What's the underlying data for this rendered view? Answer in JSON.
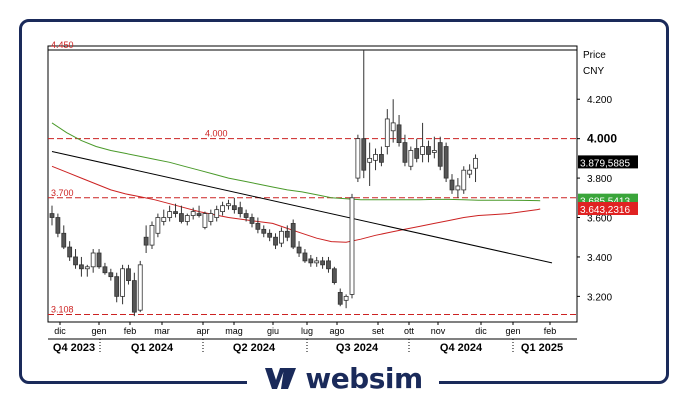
{
  "brand": {
    "name": "websim",
    "color": "#1a2a5a",
    "logo_icon": "websim-w-logo-icon"
  },
  "chart_data": {
    "type": "candlestick",
    "price_label": "Price",
    "currency_label": "CNY",
    "ylim": [
      3.07,
      4.47
    ],
    "yticks": [
      "3.200",
      "3.400",
      "3.600",
      "3.800",
      "4.000",
      "4.200"
    ],
    "ytick_values": [
      3.2,
      3.4,
      3.6,
      3.8,
      4.0,
      4.2
    ],
    "bold_tick": "4.000",
    "months": [
      "dic",
      "gen",
      "feb",
      "mar",
      "apr",
      "mag",
      "giu",
      "lug",
      "ago",
      "set",
      "ott",
      "nov",
      "dic",
      "gen",
      "feb"
    ],
    "quarters": [
      "Q4 2023",
      "Q1 2024",
      "Q2 2024",
      "Q3 2024",
      "Q4 2024",
      "Q1 2025"
    ],
    "horizontal_levels": [
      {
        "label": "4.450",
        "value": 4.45,
        "color": "#000000",
        "style": "solid"
      },
      {
        "label": "4.000",
        "value": 4.0,
        "color": "#cc2222",
        "style": "dashed"
      },
      {
        "label": "3.700",
        "value": 3.7,
        "color": "#cc2222",
        "style": "dashed"
      },
      {
        "label": "3.108",
        "value": 3.108,
        "color": "#cc2222",
        "style": "dashed"
      }
    ],
    "price_tags": [
      {
        "label": "3.879,5885",
        "value": 3.8796,
        "bg": "#000000",
        "fg": "#ffffff"
      },
      {
        "label": "3.685,5413",
        "value": 3.6855,
        "bg": "#3aa53a",
        "fg": "#ffffff"
      },
      {
        "label": "3.643,2316",
        "value": 3.6432,
        "bg": "#e02222",
        "fg": "#ffffff"
      }
    ],
    "series": [
      {
        "name": "green moving average",
        "color": "#4a9a2a",
        "x": [
          0,
          5,
          10,
          15,
          20,
          25,
          30,
          35,
          40,
          45,
          50,
          55,
          60,
          65,
          70,
          75,
          80,
          85,
          90,
          95,
          100,
          105,
          110,
          115,
          120,
          125,
          130,
          135,
          140,
          145,
          150,
          155,
          160,
          165,
          166
        ],
        "y": [
          4.08,
          4.03,
          3.99,
          3.96,
          3.94,
          3.925,
          3.91,
          3.895,
          3.88,
          3.86,
          3.84,
          3.82,
          3.8,
          3.785,
          3.77,
          3.755,
          3.74,
          3.73,
          3.715,
          3.7,
          3.695,
          3.69,
          3.69,
          3.69,
          3.69,
          3.69,
          3.692,
          3.692,
          3.69,
          3.688,
          3.688,
          3.688,
          3.687,
          3.686,
          3.6855
        ]
      },
      {
        "name": "red moving average",
        "color": "#cc2222",
        "x": [
          0,
          5,
          10,
          15,
          20,
          25,
          30,
          35,
          40,
          45,
          50,
          55,
          60,
          65,
          70,
          75,
          80,
          85,
          90,
          95,
          100,
          105,
          110,
          115,
          120,
          125,
          130,
          135,
          140,
          145,
          150,
          155,
          160,
          165,
          166
        ],
        "y": [
          3.86,
          3.83,
          3.8,
          3.77,
          3.74,
          3.72,
          3.705,
          3.69,
          3.67,
          3.65,
          3.63,
          3.615,
          3.6,
          3.59,
          3.58,
          3.57,
          3.545,
          3.52,
          3.495,
          3.478,
          3.475,
          3.49,
          3.51,
          3.525,
          3.54,
          3.555,
          3.57,
          3.585,
          3.6,
          3.61,
          3.615,
          3.62,
          3.63,
          3.64,
          3.643
        ]
      },
      {
        "name": "trend line",
        "color": "#000000",
        "x": [
          0,
          170
        ],
        "y": [
          3.935,
          3.37
        ]
      }
    ],
    "candles": [
      {
        "x": 0,
        "o": 3.62,
        "h": 3.66,
        "l": 3.56,
        "c": 3.6
      },
      {
        "x": 2,
        "o": 3.6,
        "h": 3.62,
        "l": 3.5,
        "c": 3.52
      },
      {
        "x": 4,
        "o": 3.52,
        "h": 3.56,
        "l": 3.44,
        "c": 3.45
      },
      {
        "x": 6,
        "o": 3.45,
        "h": 3.48,
        "l": 3.38,
        "c": 3.4
      },
      {
        "x": 8,
        "o": 3.4,
        "h": 3.44,
        "l": 3.34,
        "c": 3.36
      },
      {
        "x": 10,
        "o": 3.36,
        "h": 3.4,
        "l": 3.3,
        "c": 3.34
      },
      {
        "x": 12,
        "o": 3.34,
        "h": 3.36,
        "l": 3.3,
        "c": 3.35
      },
      {
        "x": 14,
        "o": 3.35,
        "h": 3.44,
        "l": 3.32,
        "c": 3.42
      },
      {
        "x": 16,
        "o": 3.42,
        "h": 3.44,
        "l": 3.34,
        "c": 3.35
      },
      {
        "x": 18,
        "o": 3.35,
        "h": 3.37,
        "l": 3.31,
        "c": 3.32
      },
      {
        "x": 20,
        "o": 3.32,
        "h": 3.34,
        "l": 3.28,
        "c": 3.3
      },
      {
        "x": 22,
        "o": 3.3,
        "h": 3.32,
        "l": 3.17,
        "c": 3.2
      },
      {
        "x": 24,
        "o": 3.2,
        "h": 3.36,
        "l": 3.16,
        "c": 3.34
      },
      {
        "x": 26,
        "o": 3.34,
        "h": 3.36,
        "l": 3.26,
        "c": 3.28
      },
      {
        "x": 28,
        "o": 3.28,
        "h": 3.32,
        "l": 3.1,
        "c": 3.12
      },
      {
        "x": 30,
        "o": 3.13,
        "h": 3.38,
        "l": 3.12,
        "c": 3.36
      },
      {
        "x": 32,
        "o": 3.5,
        "h": 3.56,
        "l": 3.42,
        "c": 3.46
      },
      {
        "x": 34,
        "o": 3.46,
        "h": 3.58,
        "l": 3.44,
        "c": 3.56
      },
      {
        "x": 36,
        "o": 3.52,
        "h": 3.62,
        "l": 3.5,
        "c": 3.6
      },
      {
        "x": 38,
        "o": 3.58,
        "h": 3.64,
        "l": 3.56,
        "c": 3.6
      },
      {
        "x": 40,
        "o": 3.6,
        "h": 3.66,
        "l": 3.58,
        "c": 3.63
      },
      {
        "x": 42,
        "o": 3.63,
        "h": 3.67,
        "l": 3.6,
        "c": 3.62
      },
      {
        "x": 44,
        "o": 3.62,
        "h": 3.66,
        "l": 3.57,
        "c": 3.58
      },
      {
        "x": 46,
        "o": 3.58,
        "h": 3.62,
        "l": 3.56,
        "c": 3.61
      },
      {
        "x": 48,
        "o": 3.61,
        "h": 3.65,
        "l": 3.59,
        "c": 3.63
      },
      {
        "x": 50,
        "o": 3.62,
        "h": 3.66,
        "l": 3.6,
        "c": 3.61
      },
      {
        "x": 52,
        "o": 3.55,
        "h": 3.63,
        "l": 3.54,
        "c": 3.62
      },
      {
        "x": 54,
        "o": 3.58,
        "h": 3.64,
        "l": 3.56,
        "c": 3.62
      },
      {
        "x": 56,
        "o": 3.6,
        "h": 3.66,
        "l": 3.58,
        "c": 3.64
      },
      {
        "x": 58,
        "o": 3.63,
        "h": 3.68,
        "l": 3.61,
        "c": 3.66
      },
      {
        "x": 60,
        "o": 3.66,
        "h": 3.69,
        "l": 3.64,
        "c": 3.67
      },
      {
        "x": 62,
        "o": 3.66,
        "h": 3.7,
        "l": 3.62,
        "c": 3.64
      },
      {
        "x": 64,
        "o": 3.65,
        "h": 3.68,
        "l": 3.6,
        "c": 3.62
      },
      {
        "x": 66,
        "o": 3.62,
        "h": 3.64,
        "l": 3.58,
        "c": 3.6
      },
      {
        "x": 68,
        "o": 3.6,
        "h": 3.62,
        "l": 3.55,
        "c": 3.57
      },
      {
        "x": 70,
        "o": 3.57,
        "h": 3.6,
        "l": 3.52,
        "c": 3.54
      },
      {
        "x": 72,
        "o": 3.54,
        "h": 3.56,
        "l": 3.5,
        "c": 3.52
      },
      {
        "x": 74,
        "o": 3.52,
        "h": 3.54,
        "l": 3.48,
        "c": 3.5
      },
      {
        "x": 76,
        "o": 3.5,
        "h": 3.52,
        "l": 3.44,
        "c": 3.46
      },
      {
        "x": 78,
        "o": 3.47,
        "h": 3.55,
        "l": 3.45,
        "c": 3.53
      },
      {
        "x": 80,
        "o": 3.53,
        "h": 3.56,
        "l": 3.48,
        "c": 3.5
      },
      {
        "x": 82,
        "o": 3.57,
        "h": 3.59,
        "l": 3.44,
        "c": 3.45
      },
      {
        "x": 84,
        "o": 3.45,
        "h": 3.48,
        "l": 3.4,
        "c": 3.42
      },
      {
        "x": 86,
        "o": 3.42,
        "h": 3.44,
        "l": 3.37,
        "c": 3.38
      },
      {
        "x": 88,
        "o": 3.39,
        "h": 3.41,
        "l": 3.35,
        "c": 3.37
      },
      {
        "x": 90,
        "o": 3.37,
        "h": 3.4,
        "l": 3.35,
        "c": 3.38
      },
      {
        "x": 92,
        "o": 3.38,
        "h": 3.4,
        "l": 3.34,
        "c": 3.36
      },
      {
        "x": 94,
        "o": 3.38,
        "h": 3.4,
        "l": 3.32,
        "c": 3.34
      },
      {
        "x": 96,
        "o": 3.34,
        "h": 3.35,
        "l": 3.26,
        "c": 3.27
      },
      {
        "x": 98,
        "o": 3.22,
        "h": 3.24,
        "l": 3.15,
        "c": 3.16
      },
      {
        "x": 100,
        "o": 3.18,
        "h": 3.21,
        "l": 3.14,
        "c": 3.2
      },
      {
        "x": 102,
        "o": 3.21,
        "h": 3.72,
        "l": 3.19,
        "c": 3.7
      },
      {
        "x": 104,
        "o": 3.8,
        "h": 4.02,
        "l": 3.78,
        "c": 4.0
      },
      {
        "x": 106,
        "o": 4.0,
        "h": 4.45,
        "l": 3.8,
        "c": 3.84
      },
      {
        "x": 108,
        "o": 3.88,
        "h": 3.98,
        "l": 3.76,
        "c": 3.9
      },
      {
        "x": 110,
        "o": 3.89,
        "h": 3.95,
        "l": 3.84,
        "c": 3.92
      },
      {
        "x": 112,
        "o": 3.92,
        "h": 3.96,
        "l": 3.86,
        "c": 3.88
      },
      {
        "x": 114,
        "o": 3.96,
        "h": 4.15,
        "l": 3.92,
        "c": 4.1
      },
      {
        "x": 116,
        "o": 4.04,
        "h": 4.2,
        "l": 3.98,
        "c": 4.08
      },
      {
        "x": 118,
        "o": 4.07,
        "h": 4.12,
        "l": 3.96,
        "c": 3.98
      },
      {
        "x": 120,
        "o": 3.98,
        "h": 4.02,
        "l": 3.86,
        "c": 3.88
      },
      {
        "x": 122,
        "o": 3.86,
        "h": 3.96,
        "l": 3.84,
        "c": 3.94
      },
      {
        "x": 124,
        "o": 3.95,
        "h": 4.0,
        "l": 3.88,
        "c": 3.9
      },
      {
        "x": 126,
        "o": 3.92,
        "h": 4.08,
        "l": 3.88,
        "c": 3.96
      },
      {
        "x": 128,
        "o": 3.96,
        "h": 3.99,
        "l": 3.88,
        "c": 3.92
      },
      {
        "x": 130,
        "o": 3.93,
        "h": 4.01,
        "l": 3.9,
        "c": 3.94
      },
      {
        "x": 132,
        "o": 3.98,
        "h": 4.01,
        "l": 3.84,
        "c": 3.86
      },
      {
        "x": 134,
        "o": 3.96,
        "h": 3.98,
        "l": 3.78,
        "c": 3.8
      },
      {
        "x": 136,
        "o": 3.79,
        "h": 3.82,
        "l": 3.72,
        "c": 3.74
      },
      {
        "x": 138,
        "o": 3.74,
        "h": 3.8,
        "l": 3.7,
        "c": 3.76
      },
      {
        "x": 140,
        "o": 3.74,
        "h": 3.86,
        "l": 3.72,
        "c": 3.84
      },
      {
        "x": 142,
        "o": 3.82,
        "h": 3.87,
        "l": 3.8,
        "c": 3.84
      },
      {
        "x": 144,
        "o": 3.85,
        "h": 3.92,
        "l": 3.78,
        "c": 3.9
      }
    ],
    "grid": false,
    "legend": "none"
  }
}
